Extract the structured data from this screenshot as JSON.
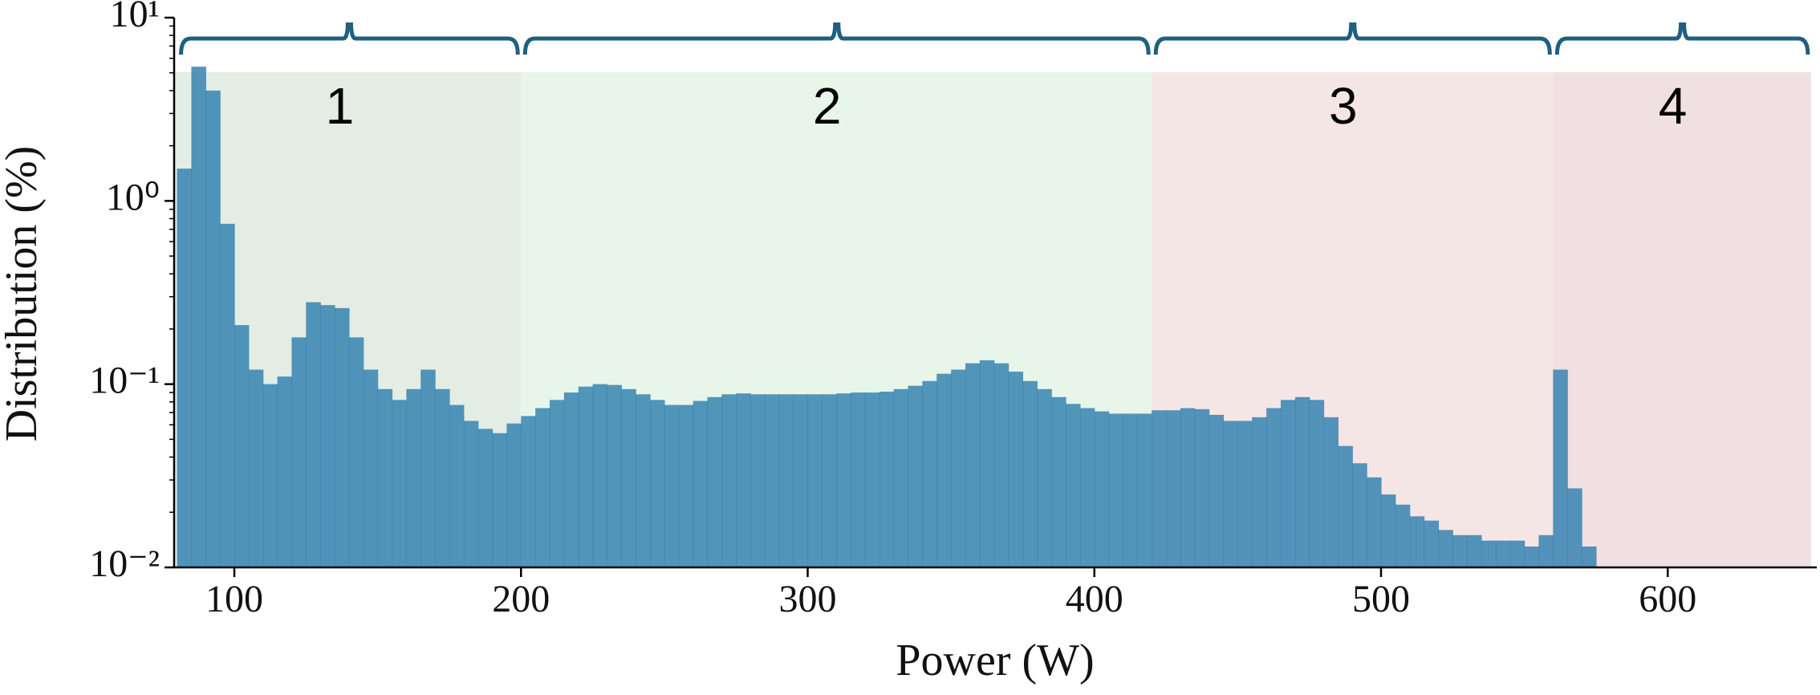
{
  "chart_data": {
    "type": "histogram",
    "xlabel": "Power (W)",
    "ylabel": "Distribution (%)",
    "xlim": [
      79,
      652
    ],
    "ylim": [
      0.01,
      10
    ],
    "log_y": true,
    "xticks": [
      100,
      200,
      300,
      400,
      500,
      600
    ],
    "yticks": [
      {
        "value": 0.01,
        "label": "10⁻²"
      },
      {
        "value": 0.1,
        "label": "10⁻¹"
      },
      {
        "value": 1,
        "label": "10⁰"
      },
      {
        "value": 10,
        "label": "10¹"
      }
    ],
    "color": "#2f7fae",
    "regions": [
      {
        "label": "1",
        "range": [
          80,
          200
        ],
        "color": "#e3ede4"
      },
      {
        "label": "2",
        "range": [
          200,
          420
        ],
        "color": "#e8f6e9"
      },
      {
        "label": "3",
        "range": [
          420,
          560
        ],
        "color": "#f5e6e6"
      },
      {
        "label": "4",
        "range": [
          560,
          650
        ],
        "color": "#f0e0e1"
      }
    ],
    "bins": [
      80,
      85,
      90,
      95,
      100,
      105,
      110,
      115,
      120,
      125,
      130,
      135,
      140,
      145,
      150,
      155,
      160,
      165,
      170,
      175,
      180,
      185,
      190,
      195,
      200,
      205,
      210,
      215,
      220,
      225,
      230,
      235,
      240,
      245,
      250,
      255,
      260,
      265,
      270,
      275,
      280,
      285,
      290,
      295,
      300,
      305,
      310,
      315,
      320,
      325,
      330,
      335,
      340,
      345,
      350,
      355,
      360,
      365,
      370,
      375,
      380,
      385,
      390,
      395,
      400,
      405,
      410,
      415,
      420,
      425,
      430,
      435,
      440,
      445,
      450,
      455,
      460,
      465,
      470,
      475,
      480,
      485,
      490,
      495,
      500,
      505,
      510,
      515,
      520,
      525,
      530,
      535,
      540,
      545,
      550,
      555,
      560,
      565,
      570,
      575
    ],
    "values": [
      1.5,
      5.4,
      4.0,
      0.75,
      0.21,
      0.12,
      0.1,
      0.11,
      0.18,
      0.28,
      0.27,
      0.26,
      0.18,
      0.12,
      0.094,
      0.082,
      0.094,
      0.12,
      0.094,
      0.077,
      0.063,
      0.057,
      0.054,
      0.061,
      0.067,
      0.074,
      0.082,
      0.09,
      0.097,
      0.1,
      0.099,
      0.094,
      0.088,
      0.082,
      0.077,
      0.077,
      0.081,
      0.085,
      0.088,
      0.089,
      0.088,
      0.088,
      0.088,
      0.088,
      0.088,
      0.088,
      0.089,
      0.09,
      0.09,
      0.091,
      0.094,
      0.098,
      0.104,
      0.114,
      0.12,
      0.13,
      0.135,
      0.13,
      0.117,
      0.104,
      0.094,
      0.085,
      0.078,
      0.074,
      0.071,
      0.069,
      0.069,
      0.069,
      0.072,
      0.072,
      0.074,
      0.073,
      0.068,
      0.063,
      0.063,
      0.066,
      0.074,
      0.082,
      0.085,
      0.082,
      0.066,
      0.046,
      0.037,
      0.031,
      0.025,
      0.022,
      0.019,
      0.018,
      0.016,
      0.015,
      0.015,
      0.014,
      0.014,
      0.014,
      0.013,
      0.015,
      0.12,
      0.027,
      0.013
    ]
  }
}
